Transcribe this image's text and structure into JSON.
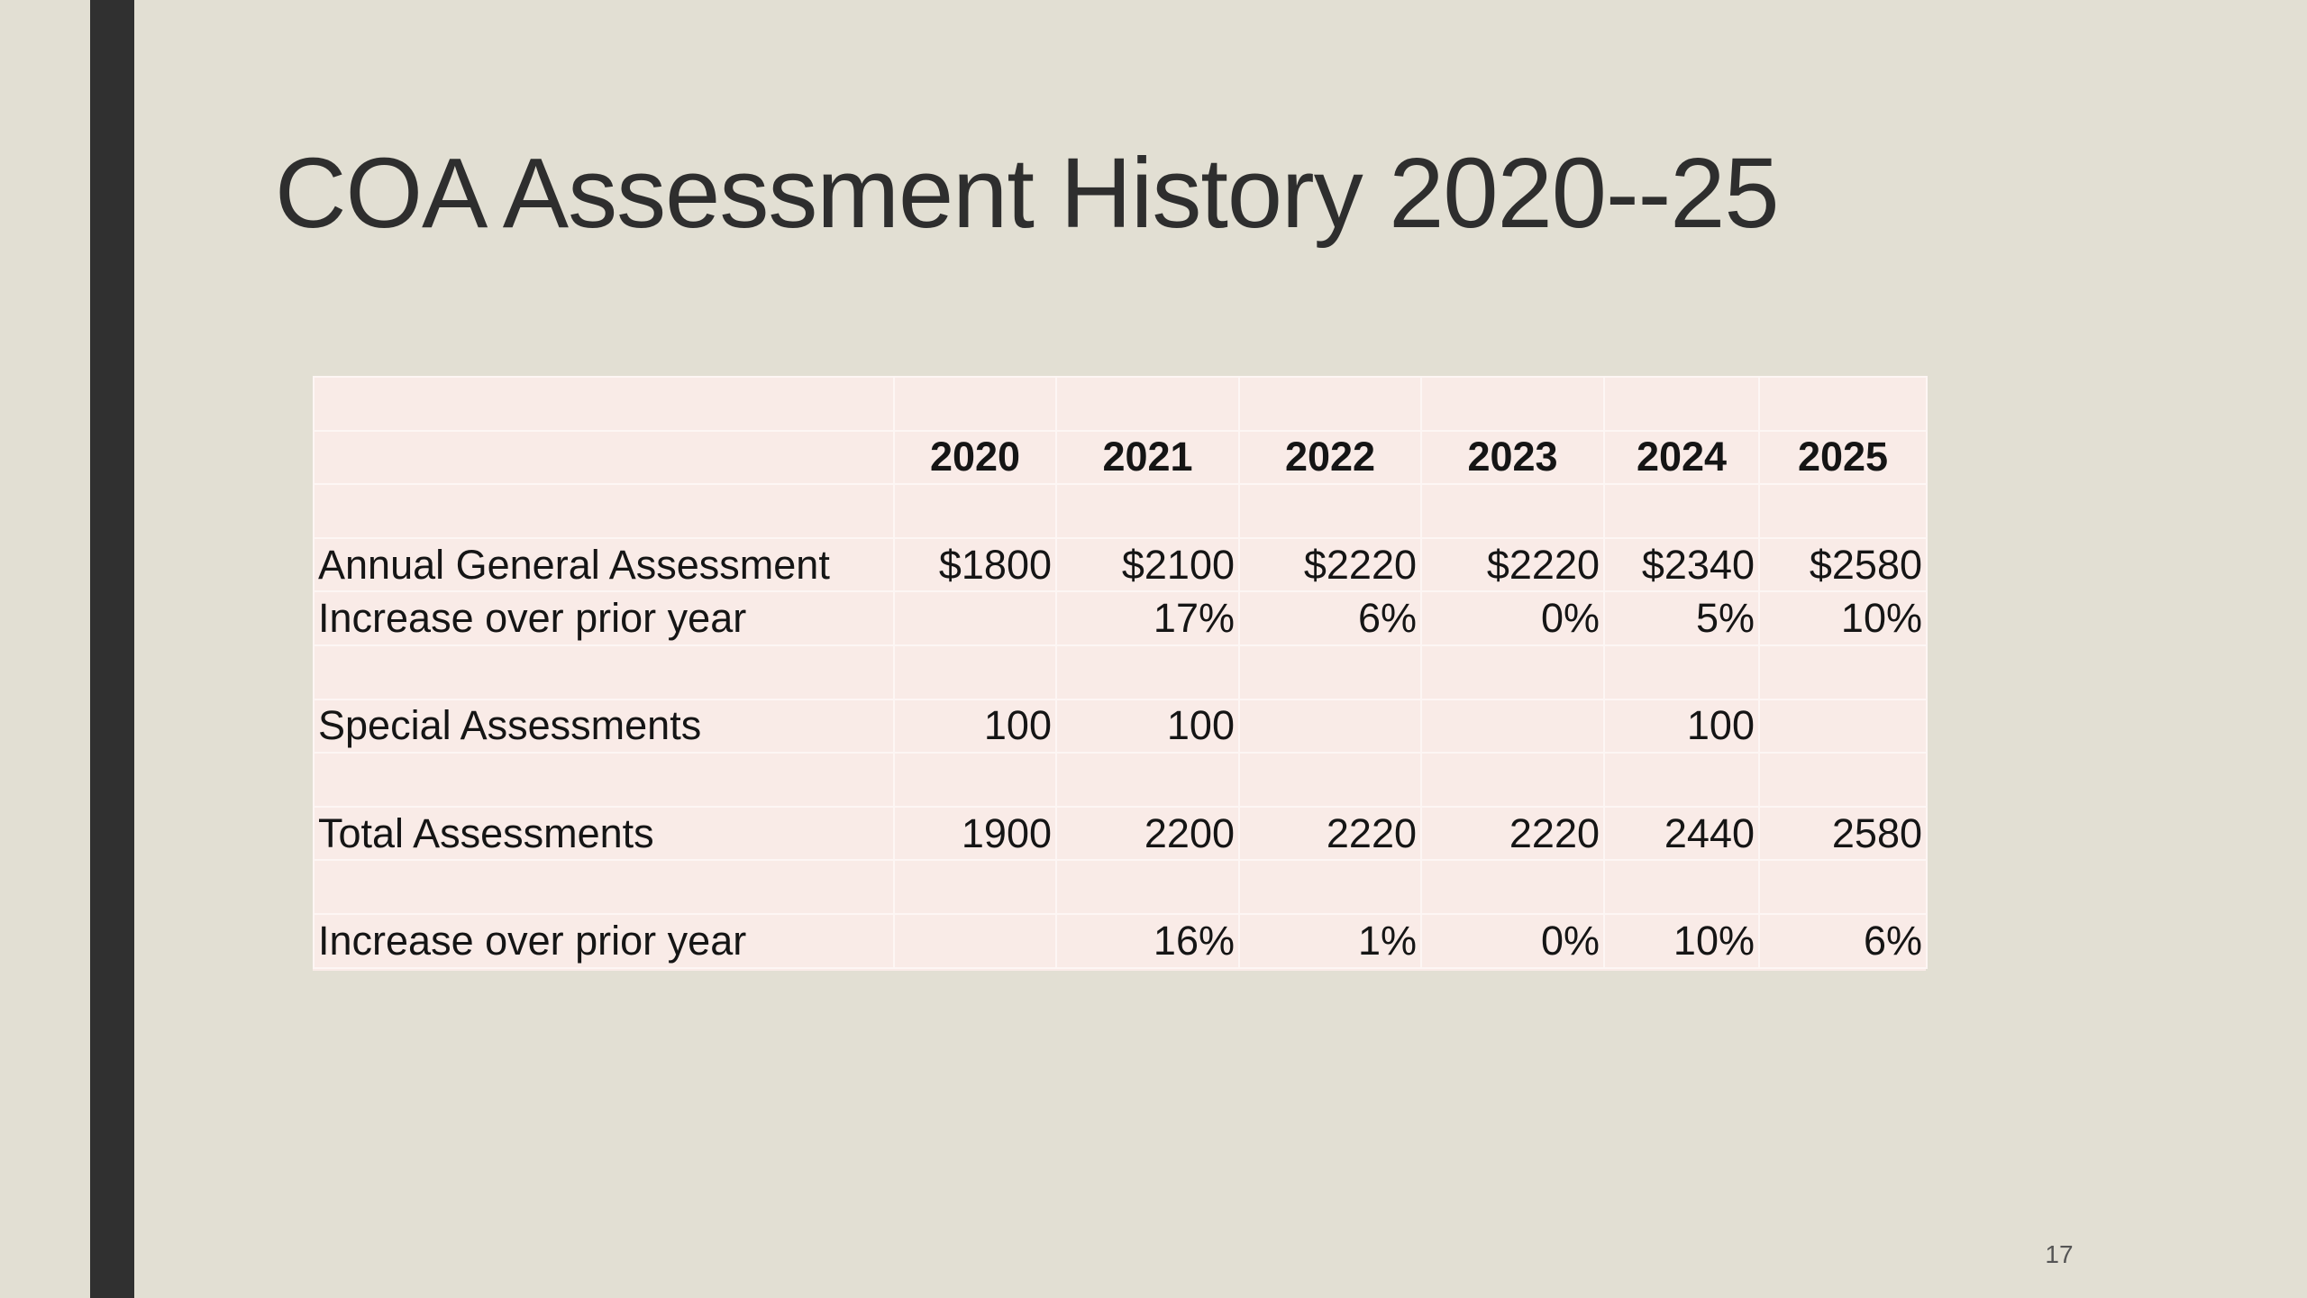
{
  "slide": {
    "title": "COA Assessment History 2020--25",
    "page_number": "17"
  },
  "colors": {
    "background": "#e2dfd3",
    "side_bar": "#303030",
    "table_fill": "#f9ebe7",
    "title_text": "#2e2e2e"
  },
  "table": {
    "years": [
      "2020",
      "2021",
      "2022",
      "2023",
      "2024",
      "2025"
    ],
    "rows": [
      {
        "label": "Annual General Assessment",
        "values": [
          "$1800",
          "$2100",
          "$2220",
          "$2220",
          "$2340",
          "$2580"
        ]
      },
      {
        "label": "Increase over prior year",
        "values": [
          "",
          "17%",
          "6%",
          "0%",
          "5%",
          "10%"
        ]
      },
      {
        "label": "Special Assessments",
        "values": [
          "100",
          "100",
          "",
          "",
          "100",
          ""
        ]
      },
      {
        "label": "Total Assessments",
        "values": [
          "1900",
          "2200",
          "2220",
          "2220",
          "2440",
          "2580"
        ]
      },
      {
        "label": "Increase over prior year",
        "values": [
          "",
          "16%",
          "1%",
          "0%",
          "10%",
          "6%"
        ]
      }
    ]
  }
}
